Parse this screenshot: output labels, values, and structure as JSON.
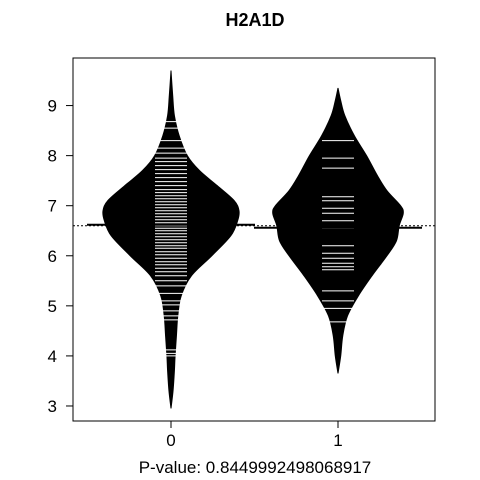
{
  "chart_data": {
    "type": "beanplot",
    "title": "H2A1D",
    "xlabel": "P-value: 0.8449992498068917",
    "ylabel": "",
    "categories": [
      "0",
      "1"
    ],
    "yticks": [
      3,
      4,
      5,
      6,
      7,
      8,
      9
    ],
    "ylim": [
      2.7,
      9.95
    ],
    "overall_mean": 6.6,
    "grid": false,
    "series": [
      {
        "category": "0",
        "mean": 6.62,
        "min": 2.95,
        "max": 9.7,
        "density": [
          [
            2.95,
            0.0
          ],
          [
            3.3,
            0.03
          ],
          [
            3.7,
            0.05
          ],
          [
            4.0,
            0.06
          ],
          [
            4.4,
            0.08
          ],
          [
            4.8,
            0.1
          ],
          [
            5.2,
            0.15
          ],
          [
            5.6,
            0.3
          ],
          [
            6.0,
            0.6
          ],
          [
            6.4,
            0.88
          ],
          [
            6.7,
            0.98
          ],
          [
            6.9,
            1.0
          ],
          [
            7.1,
            0.93
          ],
          [
            7.4,
            0.68
          ],
          [
            7.7,
            0.42
          ],
          [
            8.0,
            0.24
          ],
          [
            8.4,
            0.12
          ],
          [
            8.8,
            0.05
          ],
          [
            9.2,
            0.025
          ],
          [
            9.7,
            0.0
          ]
        ],
        "observations": [
          4.0,
          4.05,
          4.12,
          4.72,
          4.8,
          4.9,
          5.02,
          5.1,
          5.25,
          5.4,
          5.5,
          5.6,
          5.68,
          5.75,
          5.82,
          5.88,
          5.95,
          6.02,
          6.08,
          6.15,
          6.2,
          6.26,
          6.32,
          6.38,
          6.44,
          6.5,
          6.55,
          6.6,
          6.66,
          6.72,
          6.78,
          6.84,
          6.9,
          6.96,
          7.02,
          7.08,
          7.14,
          7.2,
          7.26,
          7.32,
          7.4,
          7.48,
          7.56,
          7.64,
          7.72,
          7.8,
          7.88,
          7.95,
          8.05,
          8.15,
          8.3,
          8.55,
          8.68
        ]
      },
      {
        "category": "1",
        "mean": 6.56,
        "min": 3.65,
        "max": 9.35,
        "density": [
          [
            3.65,
            0.0
          ],
          [
            4.0,
            0.04
          ],
          [
            4.4,
            0.07
          ],
          [
            4.8,
            0.14
          ],
          [
            5.2,
            0.3
          ],
          [
            5.6,
            0.5
          ],
          [
            6.0,
            0.72
          ],
          [
            6.3,
            0.86
          ],
          [
            6.6,
            0.9
          ],
          [
            6.85,
            0.96
          ],
          [
            7.0,
            0.92
          ],
          [
            7.3,
            0.72
          ],
          [
            7.6,
            0.58
          ],
          [
            8.0,
            0.42
          ],
          [
            8.4,
            0.24
          ],
          [
            8.8,
            0.1
          ],
          [
            9.1,
            0.04
          ],
          [
            9.35,
            0.0
          ]
        ],
        "observations": [
          4.68,
          4.95,
          5.1,
          5.3,
          5.72,
          5.78,
          5.85,
          5.95,
          6.05,
          6.2,
          6.55,
          6.7,
          6.85,
          6.95,
          7.1,
          7.18,
          7.75,
          7.95,
          8.3
        ]
      }
    ]
  }
}
